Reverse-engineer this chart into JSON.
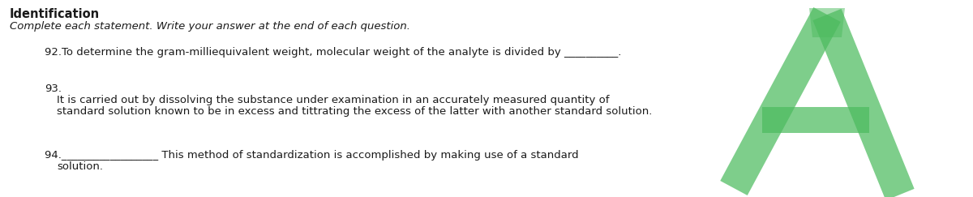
{
  "bg_color": "#ffffff",
  "title": "Identification",
  "subtitle": "Complete each statement. Write your answer at the end of each question.",
  "q92": "92.To determine the gram-milliequivalent weight, molecular weight of the analyte is divided by __________.",
  "q93_num": "93.",
  "q93_line1": "It is carried out by dissolving the substance under examination in an accurately measured quantity of",
  "q93_line2": "standard solution known to be in excess and tittrating the excess of the latter with another standard solution.",
  "q94_prefix": "94.",
  "q94_line": "__________________ This method of standardization is accomplished by making use of a standard",
  "q94_cont": "solution.",
  "letter_color": "#4dbb5f",
  "letter_alpha": 0.72,
  "text_color": "#1a1a1a",
  "title_fontsize": 10.5,
  "subtitle_fontsize": 9.5,
  "body_fontsize": 9.5,
  "figsize": [
    12.0,
    2.43
  ],
  "dpi": 100
}
